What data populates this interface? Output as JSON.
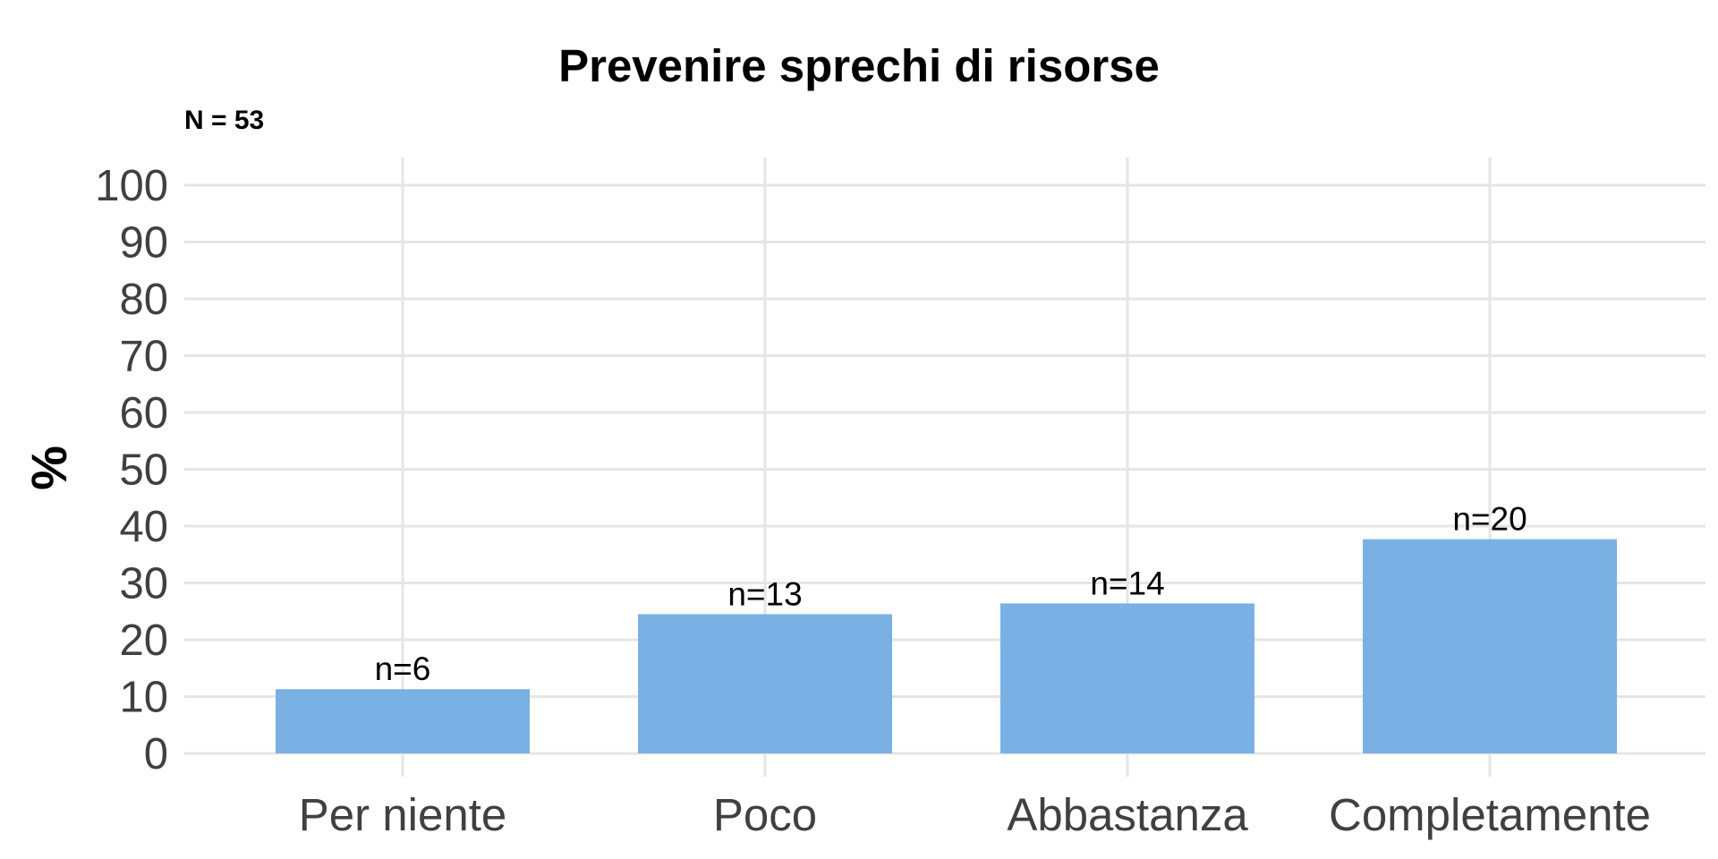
{
  "chart_data": {
    "type": "bar",
    "title": "Prevenire sprechi di risorse",
    "subtitle": "N = 53",
    "ylabel": "%",
    "xlabel": "",
    "categories": [
      "Per niente",
      "Poco",
      "Abbastanza",
      "Completamente"
    ],
    "values": [
      11.3,
      24.5,
      26.4,
      37.7
    ],
    "data_labels": [
      "n=6",
      "n=13",
      "n=14",
      "n=20"
    ],
    "ylim": [
      0,
      100
    ],
    "yticks": [
      0,
      10,
      20,
      30,
      40,
      50,
      60,
      70,
      80,
      90,
      100
    ],
    "grid": true,
    "bar_color": "#7AB1E4",
    "grid_color": "#E5E5E5"
  }
}
